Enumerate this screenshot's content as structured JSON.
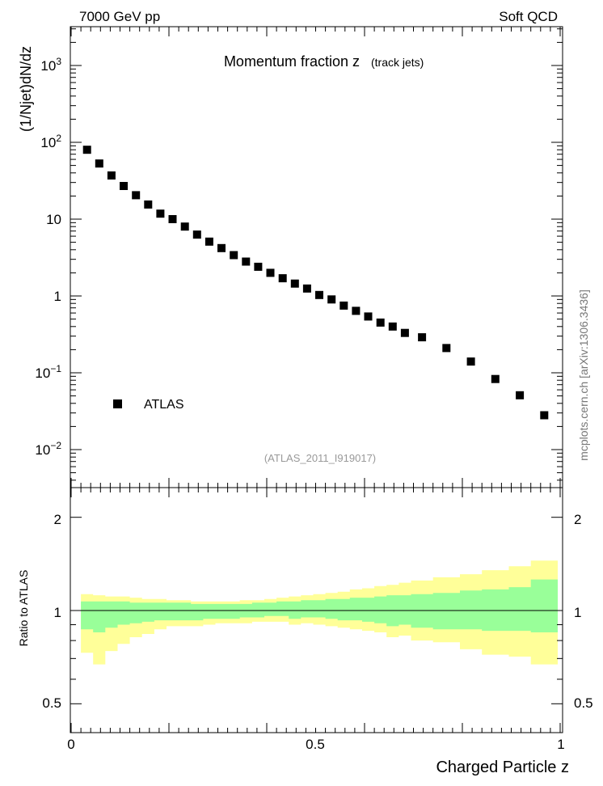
{
  "header": {
    "left": "7000 GeV pp",
    "right": "Soft QCD"
  },
  "main_plot": {
    "title": "Momentum fraction z",
    "subtitle": "(track jets)",
    "ylabel": "(1/Njet)dN/dz",
    "reference": "(ATLAS_2011_I919017)",
    "watermark": "mcplots.cern.ch [arXiv:1306.3436]",
    "ytick_labels": {
      "d2": [
        "10",
        "−2"
      ],
      "d1": [
        "10",
        "−1"
      ],
      "one": "1",
      "ten": "10",
      "h2": [
        "10",
        "2"
      ],
      "h3": [
        "10",
        "3"
      ]
    }
  },
  "legend": {
    "atlas": "ATLAS"
  },
  "ratio_plot": {
    "ylabel": "Ratio to ATLAS",
    "ytick_labels": [
      "0.5",
      "1",
      "2"
    ]
  },
  "x_axis": {
    "label": "Charged Particle z",
    "tick_labels": [
      "0",
      "0.5",
      "1"
    ]
  },
  "colors": {
    "marker": "#000000",
    "band_inner": "#99ff99",
    "band_outer": "#ffff99",
    "ref_label": "#999999"
  },
  "chart_data": {
    "type": "scatter",
    "title": "Momentum fraction z (track jets)",
    "xlabel": "Charged Particle z",
    "ylabel": "(1/Njet)dN/dz",
    "xlim": [
      0,
      1
    ],
    "ylim": [
      0.003,
      3000
    ],
    "yscale": "log",
    "series": [
      {
        "name": "ATLAS",
        "x": [
          0.0325,
          0.0575,
          0.0825,
          0.1075,
          0.1325,
          0.1575,
          0.1825,
          0.2075,
          0.2325,
          0.2575,
          0.2825,
          0.3075,
          0.3325,
          0.3575,
          0.3825,
          0.4075,
          0.4325,
          0.4575,
          0.4825,
          0.5075,
          0.5325,
          0.5575,
          0.5825,
          0.6075,
          0.6325,
          0.6575,
          0.6825,
          0.7175,
          0.7675,
          0.8175,
          0.8675,
          0.9175,
          0.9675
        ],
        "y": [
          80,
          53,
          37,
          27,
          20.5,
          15.5,
          11.8,
          10,
          8,
          6.3,
          5.1,
          4.2,
          3.4,
          2.8,
          2.4,
          2.0,
          1.7,
          1.45,
          1.25,
          1.03,
          0.9,
          0.75,
          0.64,
          0.54,
          0.45,
          0.4,
          0.33,
          0.29,
          0.21,
          0.14,
          0.083,
          0.051,
          0.028
        ]
      }
    ],
    "ratio": {
      "ylabel": "Ratio to ATLAS",
      "ylim": [
        0.4,
        2.5
      ],
      "yscale": "log",
      "reference_line": 1,
      "bin_edges": [
        0.02,
        0.045,
        0.07,
        0.095,
        0.12,
        0.145,
        0.17,
        0.195,
        0.22,
        0.245,
        0.27,
        0.295,
        0.32,
        0.345,
        0.37,
        0.395,
        0.42,
        0.445,
        0.47,
        0.495,
        0.52,
        0.545,
        0.57,
        0.595,
        0.62,
        0.645,
        0.67,
        0.695,
        0.74,
        0.795,
        0.84,
        0.895,
        0.94,
        0.995
      ],
      "inner_band_low": [
        0.87,
        0.85,
        0.88,
        0.9,
        0.91,
        0.92,
        0.93,
        0.93,
        0.93,
        0.93,
        0.94,
        0.94,
        0.94,
        0.95,
        0.95,
        0.96,
        0.96,
        0.94,
        0.95,
        0.95,
        0.94,
        0.93,
        0.93,
        0.92,
        0.91,
        0.89,
        0.9,
        0.88,
        0.87,
        0.87,
        0.86,
        0.86,
        0.85
      ],
      "inner_band_high": [
        1.07,
        1.07,
        1.07,
        1.07,
        1.06,
        1.06,
        1.06,
        1.06,
        1.06,
        1.05,
        1.05,
        1.05,
        1.05,
        1.05,
        1.06,
        1.06,
        1.07,
        1.07,
        1.08,
        1.08,
        1.09,
        1.09,
        1.1,
        1.1,
        1.11,
        1.12,
        1.12,
        1.13,
        1.14,
        1.16,
        1.17,
        1.19,
        1.26
      ],
      "outer_band_low": [
        0.73,
        0.67,
        0.74,
        0.78,
        0.82,
        0.84,
        0.87,
        0.89,
        0.89,
        0.89,
        0.9,
        0.91,
        0.91,
        0.91,
        0.92,
        0.92,
        0.92,
        0.9,
        0.91,
        0.9,
        0.89,
        0.88,
        0.87,
        0.86,
        0.85,
        0.82,
        0.83,
        0.8,
        0.79,
        0.75,
        0.72,
        0.71,
        0.67
      ],
      "outer_band_high": [
        1.13,
        1.12,
        1.11,
        1.11,
        1.1,
        1.09,
        1.09,
        1.08,
        1.08,
        1.07,
        1.07,
        1.07,
        1.07,
        1.08,
        1.08,
        1.09,
        1.1,
        1.11,
        1.12,
        1.13,
        1.14,
        1.15,
        1.17,
        1.18,
        1.2,
        1.21,
        1.23,
        1.25,
        1.28,
        1.31,
        1.35,
        1.39,
        1.45
      ]
    }
  }
}
